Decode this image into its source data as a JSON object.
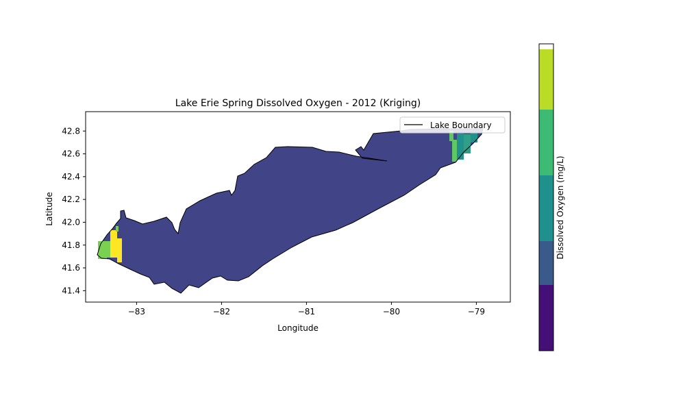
{
  "chart_data": {
    "type": "heatmap",
    "title": "Lake Erie Spring Dissolved Oxygen - 2012 (Kriging)",
    "xlabel": "Longitude",
    "ylabel": "Latitude",
    "xlim": [
      -83.6,
      -78.6
    ],
    "ylim": [
      41.3,
      42.97
    ],
    "xticks": [
      {
        "value": -83,
        "label": "−83"
      },
      {
        "value": -82,
        "label": "−82"
      },
      {
        "value": -81,
        "label": "−81"
      },
      {
        "value": -80,
        "label": "−80"
      },
      {
        "value": -79,
        "label": "−79"
      }
    ],
    "yticks": [
      {
        "value": 41.4,
        "label": "41.4"
      },
      {
        "value": 41.6,
        "label": "41.6"
      },
      {
        "value": 41.8,
        "label": "41.8"
      },
      {
        "value": 42.0,
        "label": "42.0"
      },
      {
        "value": 42.2,
        "label": "42.2"
      },
      {
        "value": 42.4,
        "label": "42.4"
      },
      {
        "value": 42.6,
        "label": "42.6"
      },
      {
        "value": 42.8,
        "label": "42.8"
      }
    ],
    "grid": false,
    "legend": {
      "placement": "top-right",
      "entries": [
        "Lake Boundary"
      ]
    },
    "colorbar": {
      "label": "Dissolved Oxygen (mg/L)",
      "levels": [
        "#440f76",
        "#3a5a8c",
        "#1f908b",
        "#3dba74",
        "#bbdc27"
      ]
    },
    "colors": {
      "lake_fill": "#414487",
      "boundary": "#000000",
      "west_high": "#fde725",
      "west_mid": "#7ad151",
      "east_low": "#21918c",
      "east_mid": "#2f9f87",
      "east_high": "#5ec962"
    }
  }
}
